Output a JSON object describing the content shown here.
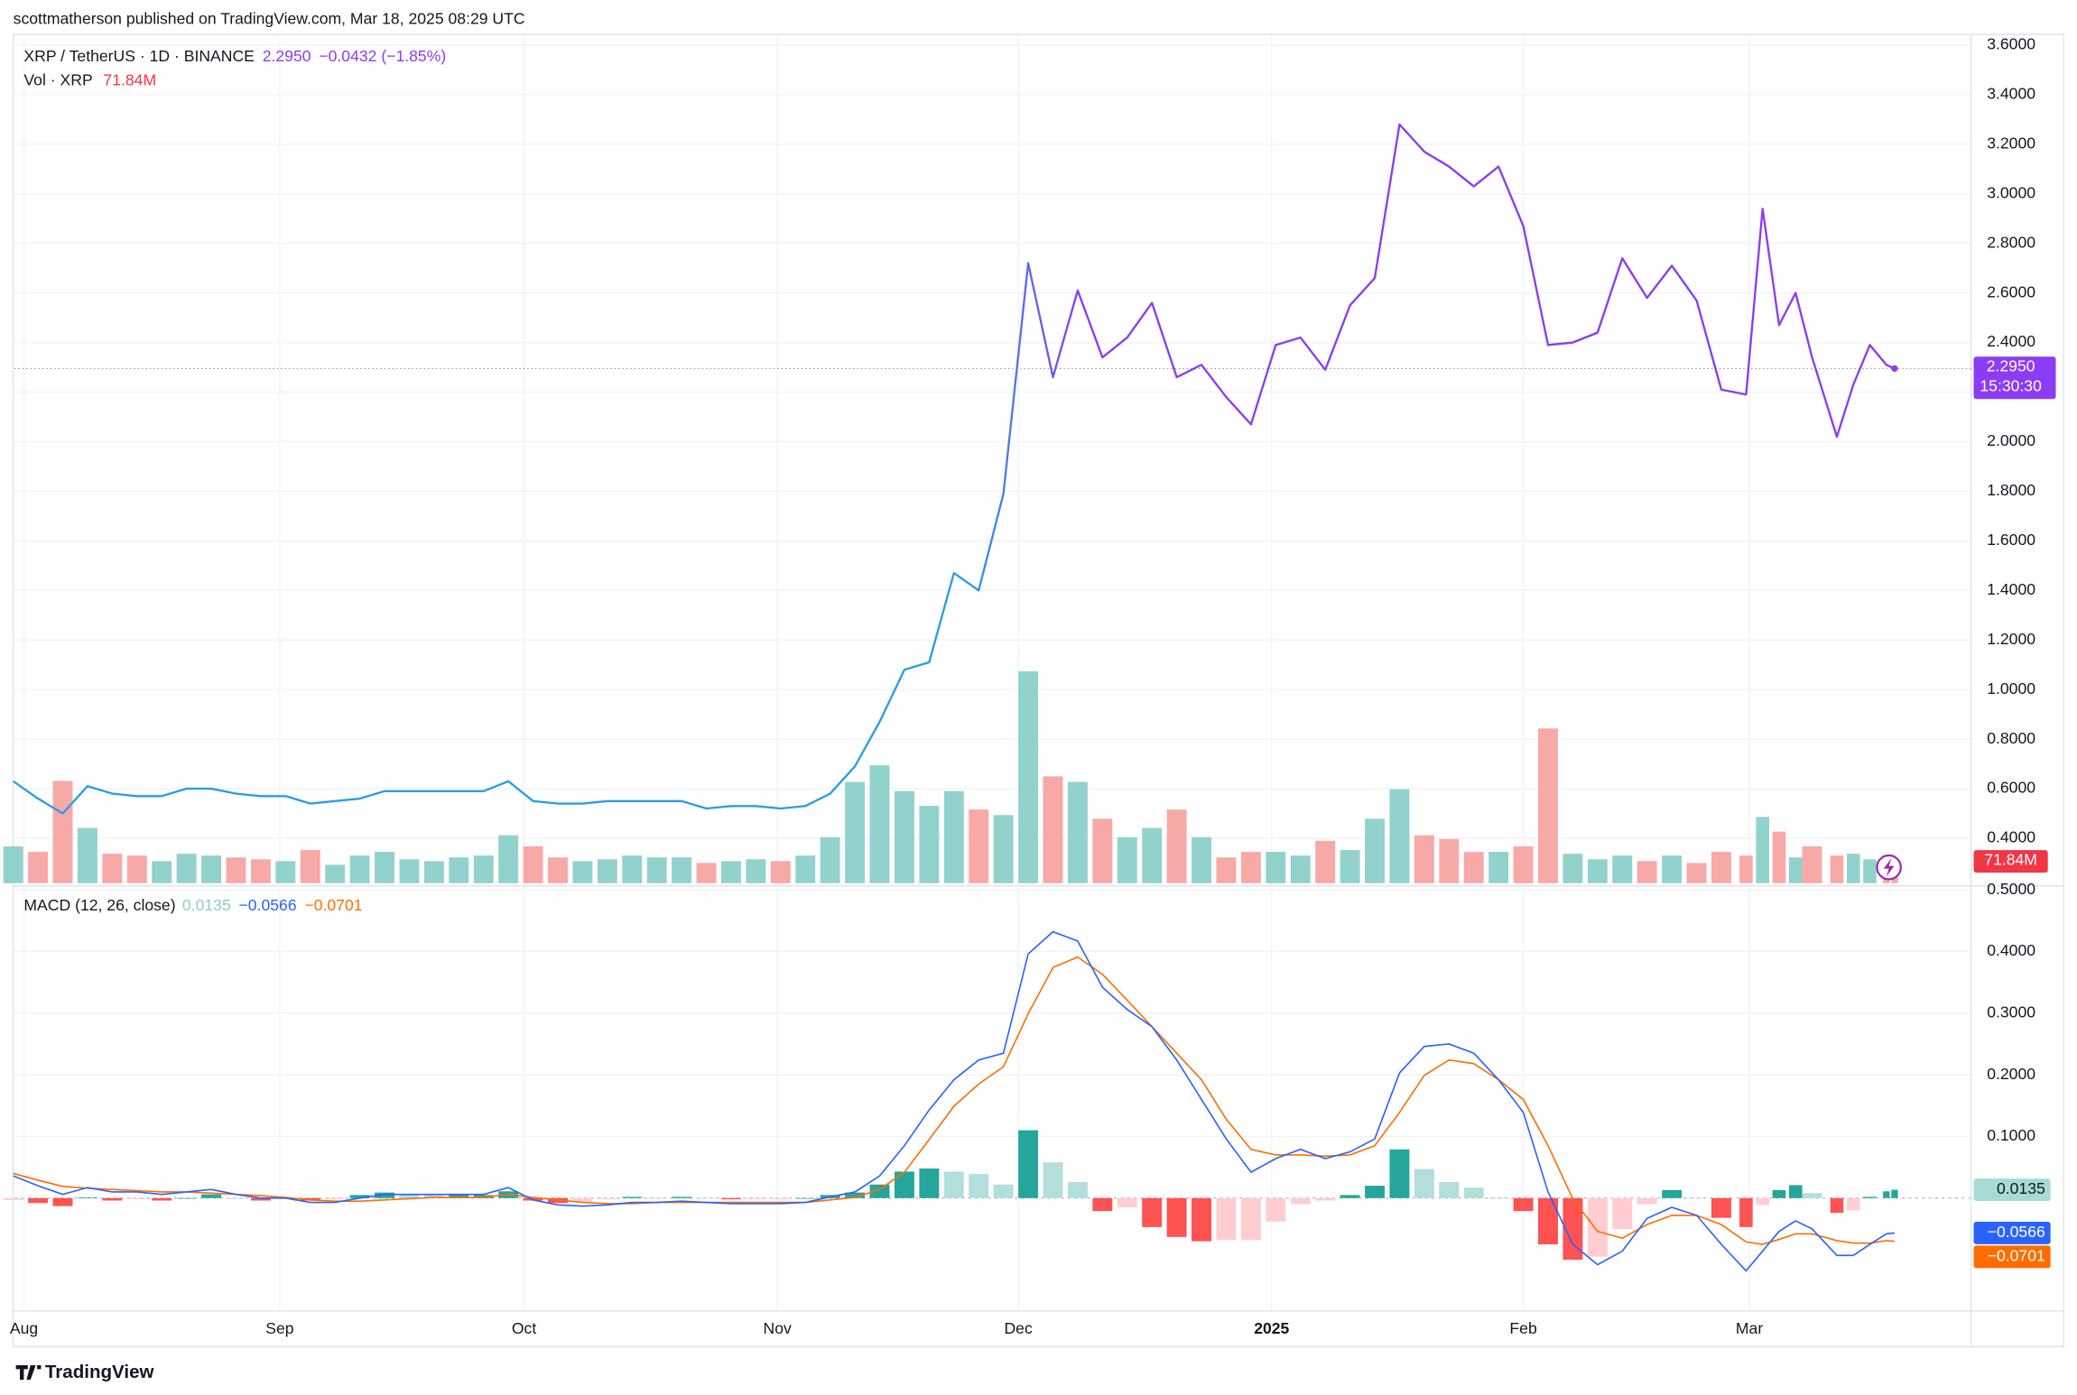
{
  "header": {
    "attribution": "scottmatherson published on TradingView.com, Mar 18, 2025 08:29 UTC",
    "brand": "TradingView"
  },
  "chart_data": [
    {
      "type": "line",
      "title": "XRP / TetherUS · 1D · BINANCE",
      "last_value_label": "2.2950",
      "change_label": "−0.0432 (−1.85%)",
      "countdown": "15:30:30",
      "x": [
        0,
        3,
        6,
        9,
        12,
        15,
        18,
        21,
        24,
        27,
        30,
        33,
        36,
        39,
        42,
        45,
        48,
        51,
        54,
        57,
        60,
        63,
        66,
        69,
        72,
        75,
        78,
        81,
        84,
        87,
        90,
        93,
        96,
        99,
        102,
        105,
        108,
        111,
        114,
        117,
        120,
        123,
        126,
        129,
        132,
        135,
        138,
        141,
        144,
        147,
        150,
        153,
        156,
        159,
        162,
        165,
        168,
        171,
        174,
        177,
        180,
        183,
        186,
        189,
        192,
        195,
        198,
        201,
        204,
        207,
        210,
        212,
        214,
        216,
        218,
        221,
        223,
        225,
        227,
        228
      ],
      "xlim": [
        0,
        231
      ],
      "xticks": [
        {
          "value": 1.3,
          "label": "Aug"
        },
        {
          "value": 32.3,
          "label": "Sep"
        },
        {
          "value": 61.9,
          "label": "Oct"
        },
        {
          "value": 92.6,
          "label": "Nov"
        },
        {
          "value": 121.8,
          "label": "Dec"
        },
        {
          "value": 152.5,
          "label": "2025"
        },
        {
          "value": 183,
          "label": "Feb"
        },
        {
          "value": 210.4,
          "label": "Mar"
        }
      ],
      "ylim": [
        0.2186,
        3.675
      ],
      "yticks": [
        {
          "value": 0.4,
          "label": "0.4000"
        },
        {
          "value": 0.6,
          "label": "0.6000"
        },
        {
          "value": 0.8,
          "label": "0.8000"
        },
        {
          "value": 1.0,
          "label": "1.0000"
        },
        {
          "value": 1.2,
          "label": "1.2000"
        },
        {
          "value": 1.4,
          "label": "1.4000"
        },
        {
          "value": 1.6,
          "label": "1.6000"
        },
        {
          "value": 1.8,
          "label": "1.8000"
        },
        {
          "value": 2.0,
          "label": "2.0000"
        },
        {
          "value": 2.2,
          "label": "2.2000"
        },
        {
          "value": 2.4,
          "label": "2.4000"
        },
        {
          "value": 2.6,
          "label": "2.6000"
        },
        {
          "value": 2.8,
          "label": "2.8000"
        },
        {
          "value": 3.0,
          "label": "3.0000"
        },
        {
          "value": 3.2,
          "label": "3.2000"
        },
        {
          "value": 3.4,
          "label": "3.4000"
        },
        {
          "value": 3.6,
          "label": "3.6000"
        }
      ],
      "grid": true,
      "series": [
        {
          "name": "XRP / TetherUS · 1D · BINANCE",
          "colors": [
            "#2a9de8",
            "#8c3cf4"
          ],
          "values": [
            0.63,
            0.56,
            0.5,
            0.61,
            0.58,
            0.57,
            0.57,
            0.6,
            0.6,
            0.58,
            0.57,
            0.57,
            0.54,
            0.55,
            0.56,
            0.59,
            0.59,
            0.59,
            0.59,
            0.59,
            0.63,
            0.55,
            0.54,
            0.54,
            0.55,
            0.55,
            0.55,
            0.55,
            0.52,
            0.53,
            0.53,
            0.52,
            0.53,
            0.58,
            0.69,
            0.87,
            1.08,
            1.11,
            1.47,
            1.4,
            1.79,
            2.72,
            2.26,
            2.61,
            2.34,
            2.42,
            2.56,
            2.26,
            2.31,
            2.18,
            2.07,
            2.39,
            2.42,
            2.29,
            2.55,
            2.66,
            3.28,
            3.17,
            3.11,
            3.03,
            3.11,
            2.87,
            2.39,
            2.4,
            2.44,
            2.74,
            2.58,
            2.71,
            2.57,
            2.21,
            2.19,
            2.94,
            2.47,
            2.6,
            2.34,
            2.02,
            2.23,
            2.39,
            2.31,
            2.295
          ]
        }
      ]
    },
    {
      "type": "bar",
      "title": "Vol · XRP",
      "value_label": "71.84M",
      "ylim": [
        0,
        4650
      ],
      "up_color": "#92d2cc",
      "down_color": "#f7a9a7",
      "label_color": "#f23645",
      "values": [
        200,
        170,
        555,
        300,
        160,
        150,
        120,
        160,
        150,
        140,
        130,
        120,
        180,
        100,
        150,
        170,
        130,
        120,
        140,
        150,
        260,
        200,
        140,
        120,
        130,
        150,
        140,
        140,
        110,
        120,
        130,
        120,
        150,
        250,
        550,
        640,
        500,
        420,
        500,
        400,
        370,
        1150,
        580,
        550,
        350,
        250,
        300,
        400,
        250,
        140,
        170,
        170,
        150,
        230,
        180,
        350,
        510,
        260,
        240,
        170,
        170,
        200,
        840,
        160,
        130,
        150,
        120,
        150,
        110,
        170,
        150,
        360,
        280,
        140,
        200,
        150,
        160,
        130,
        90,
        71.84
      ]
    },
    {
      "type": "macd",
      "title": "MACD (12, 26, close)",
      "ylim": [
        -0.183,
        0.5
      ],
      "yticks": [
        {
          "value": 0.1,
          "label": "0.1000"
        },
        {
          "value": 0.2,
          "label": "0.2000"
        },
        {
          "value": 0.3,
          "label": "0.3000"
        },
        {
          "value": 0.4,
          "label": "0.4000"
        },
        {
          "value": 0.5,
          "label": "0.5000"
        }
      ],
      "histogram": {
        "value_label": "0.0135",
        "colors": [
          "#26a69a",
          "#b2dfdb",
          "#ff5252",
          "#ffcdd2"
        ],
        "label_color": "#a6dcd4",
        "values": [
          -0.003,
          -0.008,
          -0.013,
          0.001,
          -0.004,
          -0.002,
          -0.004,
          0,
          0.006,
          0,
          -0.004,
          -0.001,
          -0.004,
          -0.002,
          0.005,
          0.009,
          0.007,
          0.005,
          0.005,
          0.005,
          0.011,
          -0.004,
          -0.008,
          -0.006,
          -0.002,
          0.002,
          0,
          0.002,
          0,
          -0.002,
          -0.002,
          -0.002,
          0,
          0.005,
          0.009,
          0.022,
          0.043,
          0.048,
          0.043,
          0.039,
          0.022,
          0.11,
          0.058,
          0.026,
          -0.021,
          -0.015,
          -0.047,
          -0.063,
          -0.07,
          -0.068,
          -0.068,
          -0.038,
          -0.01,
          -0.004,
          0.005,
          0.02,
          0.079,
          0.047,
          0.026,
          0.017,
          0,
          -0.021,
          -0.075,
          -0.1,
          -0.095,
          -0.05,
          -0.01,
          0.013,
          0,
          -0.032,
          -0.047,
          -0.011,
          0.013,
          0.021,
          0.008,
          -0.024,
          -0.02,
          0.002,
          0.011,
          0.0135
        ]
      },
      "macd": {
        "color": "#2962ff",
        "value_label": "−0.0566",
        "values": [
          0.036,
          0.02,
          0.006,
          0.017,
          0.01,
          0.01,
          0.006,
          0.01,
          0.014,
          0.006,
          0,
          0,
          -0.007,
          -0.007,
          0,
          0.006,
          0.006,
          0.006,
          0.006,
          0.006,
          0.017,
          -0.003,
          -0.011,
          -0.013,
          -0.011,
          -0.007,
          -0.007,
          -0.005,
          -0.007,
          -0.009,
          -0.009,
          -0.009,
          -0.007,
          0.002,
          0.01,
          0.036,
          0.085,
          0.143,
          0.192,
          0.224,
          0.235,
          0.396,
          0.432,
          0.417,
          0.342,
          0.306,
          0.278,
          0.224,
          0.16,
          0.096,
          0.042,
          0.064,
          0.079,
          0.064,
          0.075,
          0.096,
          0.203,
          0.246,
          0.25,
          0.235,
          0.192,
          0.139,
          0.01,
          -0.075,
          -0.108,
          -0.086,
          -0.033,
          -0.015,
          -0.028,
          -0.075,
          -0.118,
          -0.086,
          -0.054,
          -0.037,
          -0.05,
          -0.093,
          -0.093,
          -0.075,
          -0.058,
          -0.0566
        ]
      },
      "signal": {
        "color": "#ff6d00",
        "value_label": "−0.0701",
        "values": [
          0.04,
          0.029,
          0.019,
          0.016,
          0.014,
          0.012,
          0.01,
          0.01,
          0.008,
          0.006,
          0.004,
          0.001,
          -0.003,
          -0.005,
          -0.005,
          -0.003,
          -0.001,
          0.001,
          0.001,
          0.001,
          0.006,
          0.001,
          -0.003,
          -0.007,
          -0.009,
          -0.009,
          -0.007,
          -0.007,
          -0.007,
          -0.007,
          -0.007,
          -0.007,
          -0.007,
          -0.003,
          0.001,
          0.014,
          0.042,
          0.095,
          0.149,
          0.185,
          0.213,
          0.299,
          0.374,
          0.391,
          0.363,
          0.321,
          0.278,
          0.235,
          0.192,
          0.128,
          0.079,
          0.07,
          0.07,
          0.068,
          0.07,
          0.085,
          0.139,
          0.199,
          0.224,
          0.218,
          0.192,
          0.16,
          0.085,
          -0.001,
          -0.054,
          -0.065,
          -0.043,
          -0.028,
          -0.028,
          -0.043,
          -0.071,
          -0.075,
          -0.067,
          -0.058,
          -0.058,
          -0.069,
          -0.073,
          -0.073,
          -0.069,
          -0.0701
        ]
      }
    }
  ]
}
